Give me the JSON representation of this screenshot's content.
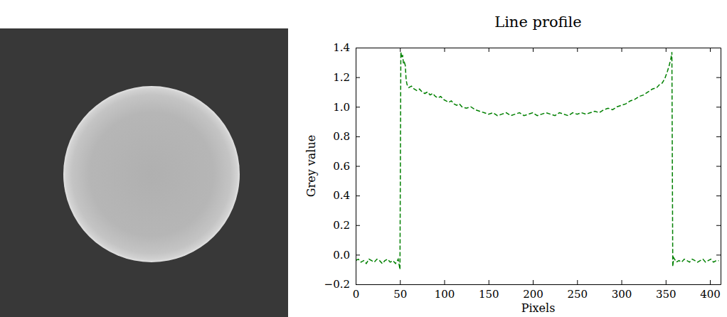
{
  "chart_data": {
    "type": "line",
    "title": "Line profile",
    "x_label": "Pixels",
    "y_label": "Grey value",
    "x": [
      0,
      3,
      6,
      9,
      12,
      15,
      18,
      21,
      24,
      27,
      30,
      33,
      36,
      39,
      42,
      45,
      48,
      50,
      51,
      52,
      53,
      54,
      55,
      56,
      57,
      58,
      60,
      63,
      66,
      69,
      72,
      75,
      78,
      81,
      84,
      87,
      90,
      93,
      96,
      99,
      102,
      105,
      108,
      111,
      114,
      117,
      120,
      125,
      130,
      135,
      140,
      145,
      150,
      155,
      160,
      165,
      170,
      175,
      180,
      185,
      190,
      195,
      200,
      205,
      210,
      215,
      220,
      225,
      230,
      235,
      240,
      245,
      250,
      255,
      260,
      265,
      270,
      275,
      280,
      285,
      290,
      295,
      300,
      305,
      310,
      315,
      320,
      325,
      330,
      335,
      340,
      343,
      346,
      349,
      352,
      354,
      356,
      357,
      358,
      359,
      360,
      362,
      365,
      368,
      371,
      374,
      377,
      380,
      383,
      386,
      389,
      392,
      395,
      398,
      401,
      404,
      407,
      410
    ],
    "series": [
      {
        "color": "#008000",
        "line_style": "dashed",
        "values": [
          -0.04,
          -0.03,
          -0.05,
          -0.04,
          -0.06,
          -0.03,
          -0.04,
          -0.05,
          -0.03,
          -0.04,
          -0.06,
          -0.04,
          -0.03,
          -0.05,
          -0.04,
          -0.06,
          -0.03,
          -0.1,
          1.37,
          1.33,
          1.35,
          1.29,
          1.3,
          1.28,
          1.18,
          1.15,
          1.13,
          1.14,
          1.12,
          1.11,
          1.12,
          1.1,
          1.09,
          1.1,
          1.08,
          1.09,
          1.07,
          1.06,
          1.07,
          1.05,
          1.04,
          1.03,
          1.04,
          1.02,
          1.01,
          1.02,
          1.0,
          0.99,
          1.0,
          0.98,
          0.97,
          0.96,
          0.95,
          0.96,
          0.94,
          0.95,
          0.96,
          0.94,
          0.95,
          0.96,
          0.94,
          0.95,
          0.96,
          0.94,
          0.95,
          0.96,
          0.95,
          0.94,
          0.96,
          0.95,
          0.94,
          0.96,
          0.95,
          0.96,
          0.95,
          0.96,
          0.97,
          0.96,
          0.98,
          0.99,
          0.98,
          1.0,
          1.01,
          1.02,
          1.04,
          1.05,
          1.07,
          1.08,
          1.1,
          1.12,
          1.13,
          1.15,
          1.16,
          1.19,
          1.24,
          1.28,
          1.33,
          1.37,
          -0.08,
          -0.02,
          -0.03,
          -0.05,
          -0.04,
          -0.05,
          -0.03,
          -0.04,
          -0.05,
          -0.03,
          -0.04,
          -0.05,
          -0.04,
          -0.03,
          -0.05,
          -0.04,
          -0.03,
          -0.05,
          -0.04,
          -0.04
        ]
      }
    ],
    "xlim": [
      0,
      412
    ],
    "xticks": [
      0,
      50,
      100,
      150,
      200,
      250,
      300,
      350,
      400
    ],
    "ylim": [
      -0.2,
      1.4
    ],
    "yticks": [
      {
        "value": -0.2,
        "label": "−0.2"
      },
      {
        "value": 0.0,
        "label": "0.0"
      },
      0.2,
      0.4,
      0.6,
      0.8,
      {
        "value": 1.0,
        "label": "1.0"
      },
      1.2,
      1.4
    ]
  }
}
